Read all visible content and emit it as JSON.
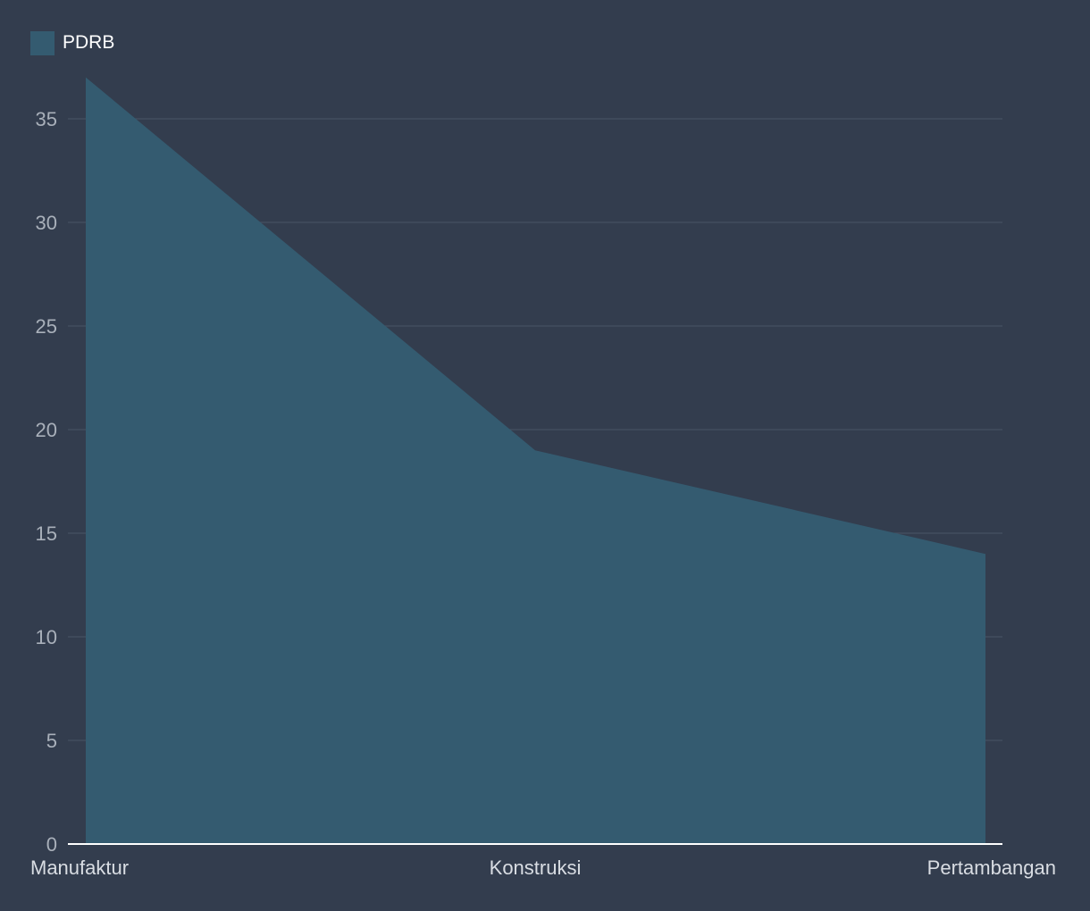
{
  "colors": {
    "background": "#333d4e",
    "area_fill": "#345b70",
    "grid": "#465162",
    "axis": "#ffffff",
    "tick_text": "#a9b0ba",
    "category_text": "#d9dde3",
    "legend_text": "#ffffff"
  },
  "legend": {
    "items": [
      {
        "label": "PDRB",
        "color": "#345b70"
      }
    ]
  },
  "chart_data": {
    "type": "area",
    "title": "",
    "xlabel": "",
    "ylabel": "",
    "categories": [
      "Manufaktur",
      "Konstruksi",
      "Pertambangan"
    ],
    "series": [
      {
        "name": "PDRB",
        "values": [
          37,
          19,
          14
        ]
      }
    ],
    "ylim": [
      0,
      35
    ],
    "yticks": [
      0,
      5,
      10,
      15,
      20,
      25,
      30,
      35
    ],
    "grid": true,
    "legend_position": "top-left"
  }
}
